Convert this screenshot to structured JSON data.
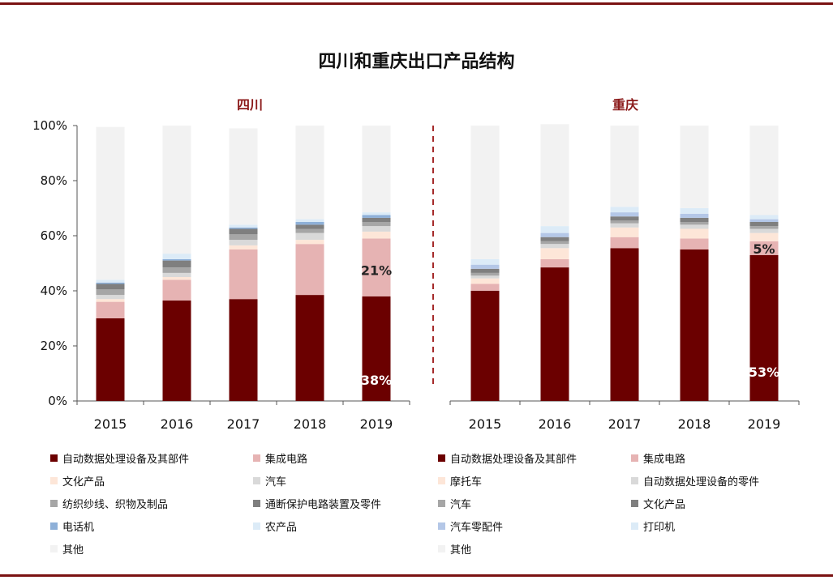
{
  "title": "四川和重庆出口产品结构",
  "chart_data": [
    {
      "type": "bar",
      "stacked": "percent",
      "title": "四川",
      "categories": [
        "2015",
        "2016",
        "2017",
        "2018",
        "2019"
      ],
      "ylim": [
        0,
        100
      ],
      "yticks": [
        "0%",
        "20%",
        "40%",
        "60%",
        "80%",
        "100%"
      ],
      "series": [
        {
          "name": "自动数据处理设备及其部件",
          "color": "#6b0000",
          "values": [
            30,
            36.5,
            37,
            38.5,
            38
          ]
        },
        {
          "name": "集成电路",
          "color": "#e6b3b3",
          "values": [
            6,
            7.5,
            18,
            18.5,
            21
          ]
        },
        {
          "name": "文化产品",
          "color": "#fde6d8",
          "values": [
            1,
            1,
            1.5,
            1.5,
            2.5
          ]
        },
        {
          "name": "汽车",
          "color": "#d9d9d9",
          "values": [
            1.5,
            1.5,
            2,
            2.5,
            2
          ]
        },
        {
          "name": "纺织纱线、织物及制品",
          "color": "#a6a6a6",
          "values": [
            2,
            2,
            2,
            1.5,
            1.5
          ]
        },
        {
          "name": "通断保护电路装置及零件",
          "color": "#7f7f7f",
          "values": [
            2,
            2.5,
            2,
            1.5,
            1.5
          ]
        },
        {
          "name": "电话机",
          "color": "#8eb0d8",
          "values": [
            0.5,
            0.5,
            0.5,
            1,
            1
          ]
        },
        {
          "name": "农产品",
          "color": "#dcebf7",
          "values": [
            1,
            2,
            1,
            1,
            1
          ]
        },
        {
          "name": "其他",
          "color": "#f2f2f2",
          "values": [
            55.5,
            46.5,
            35,
            34,
            31.5
          ]
        }
      ],
      "annotations": [
        {
          "category": "2019",
          "series": "集成电路",
          "label": "21%"
        },
        {
          "category": "2019",
          "series": "自动数据处理设备及其部件",
          "label": "38%"
        }
      ]
    },
    {
      "type": "bar",
      "stacked": "percent",
      "title": "重庆",
      "categories": [
        "2015",
        "2016",
        "2017",
        "2018",
        "2019"
      ],
      "ylim": [
        0,
        100
      ],
      "series": [
        {
          "name": "自动数据处理设备及其部件",
          "color": "#6b0000",
          "values": [
            40,
            48.5,
            55.5,
            55,
            53
          ]
        },
        {
          "name": "集成电路",
          "color": "#e6b3b3",
          "values": [
            2.5,
            3,
            4,
            4,
            5
          ]
        },
        {
          "name": "摩托车",
          "color": "#fde6d8",
          "values": [
            2,
            4,
            3.5,
            3.5,
            3
          ]
        },
        {
          "name": "自动数据处理设备的零件",
          "color": "#d9d9d9",
          "values": [
            1,
            1.5,
            1.5,
            1.5,
            1.5
          ]
        },
        {
          "name": "汽车",
          "color": "#a6a6a6",
          "values": [
            1,
            1,
            1,
            1,
            1
          ]
        },
        {
          "name": "文化产品",
          "color": "#7f7f7f",
          "values": [
            1.5,
            1.5,
            1.5,
            1.5,
            1.5
          ]
        },
        {
          "name": "汽车零配件",
          "color": "#b4c7e7",
          "values": [
            1.5,
            1.5,
            1.5,
            1.5,
            1
          ]
        },
        {
          "name": "打印机",
          "color": "#dcebf7",
          "values": [
            2,
            2.5,
            2,
            2,
            1.5
          ]
        },
        {
          "name": "其他",
          "color": "#f2f2f2",
          "values": [
            48.5,
            37,
            29.5,
            30,
            32.5
          ]
        }
      ],
      "annotations": [
        {
          "category": "2019",
          "series": "集成电路",
          "label": "5%"
        },
        {
          "category": "2019",
          "series": "自动数据处理设备及其部件",
          "label": "53%"
        }
      ]
    }
  ]
}
